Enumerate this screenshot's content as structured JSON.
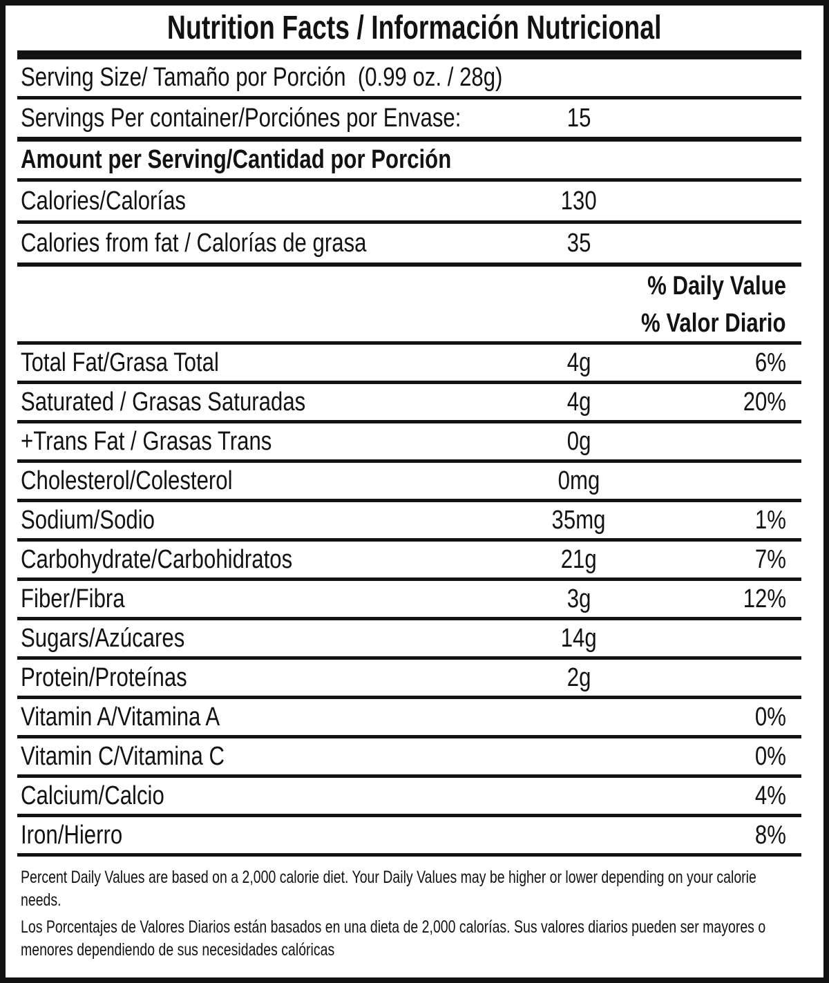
{
  "title": "Nutrition Facts / Información Nutricional",
  "serving": {
    "serving_size_label": "Serving Size/ Tamaño por Porción  (0.99 oz. / 28g)",
    "servings_per_container_label": "Servings Per container/Porciónes por Envase:",
    "servings_per_container_value": "15",
    "amount_per_serving_header": "Amount per Serving/Cantidad por Porción"
  },
  "calories": [
    {
      "label": "Calories/Calorías",
      "amount": "130"
    },
    {
      "label": "Calories from fat / Calorías de grasa",
      "amount": "35"
    }
  ],
  "daily_value_header": {
    "en": "% Daily Value",
    "es": "% Valor Diario"
  },
  "nutrients": [
    {
      "label": "Total Fat/Grasa Total",
      "amount": "4g",
      "dv": "6%"
    },
    {
      "label": "Saturated / Grasas Saturadas",
      "amount": "4g",
      "dv": "20%"
    },
    {
      "label": "+Trans Fat / Grasas Trans",
      "amount": "0g",
      "dv": ""
    },
    {
      "label": "Cholesterol/Colesterol",
      "amount": "0mg",
      "dv": ""
    },
    {
      "label": "Sodium/Sodio",
      "amount": "35mg",
      "dv": "1%"
    },
    {
      "label": "Carbohydrate/Carbohidratos",
      "amount": "21g",
      "dv": "7%"
    },
    {
      "label": "Fiber/Fibra",
      "amount": "3g",
      "dv": "12%"
    },
    {
      "label": "Sugars/Azúcares",
      "amount": "14g",
      "dv": ""
    },
    {
      "label": "Protein/Proteínas",
      "amount": "2g",
      "dv": ""
    },
    {
      "label": "Vitamin A/Vitamina A",
      "amount": "",
      "dv": "0%"
    },
    {
      "label": "Vitamin C/Vitamina C",
      "amount": "",
      "dv": "0%"
    },
    {
      "label": "Calcium/Calcio",
      "amount": "",
      "dv": "4%"
    },
    {
      "label": "Iron/Hierro",
      "amount": "",
      "dv": "8%"
    }
  ],
  "footnotes": {
    "en": "Percent Daily Values are based on a 2,000 calorie diet. Your Daily Values may be higher or lower depending on your calorie needs.",
    "es": "Los Porcentajes de Valores Diarios están basados en una dieta de 2,000 calorías. Sus valores diarios pueden ser mayores o menores dependiendo de sus necesidades calóricas"
  },
  "colors": {
    "text": "#121212",
    "background": "#ffffff",
    "border": "#121212"
  }
}
